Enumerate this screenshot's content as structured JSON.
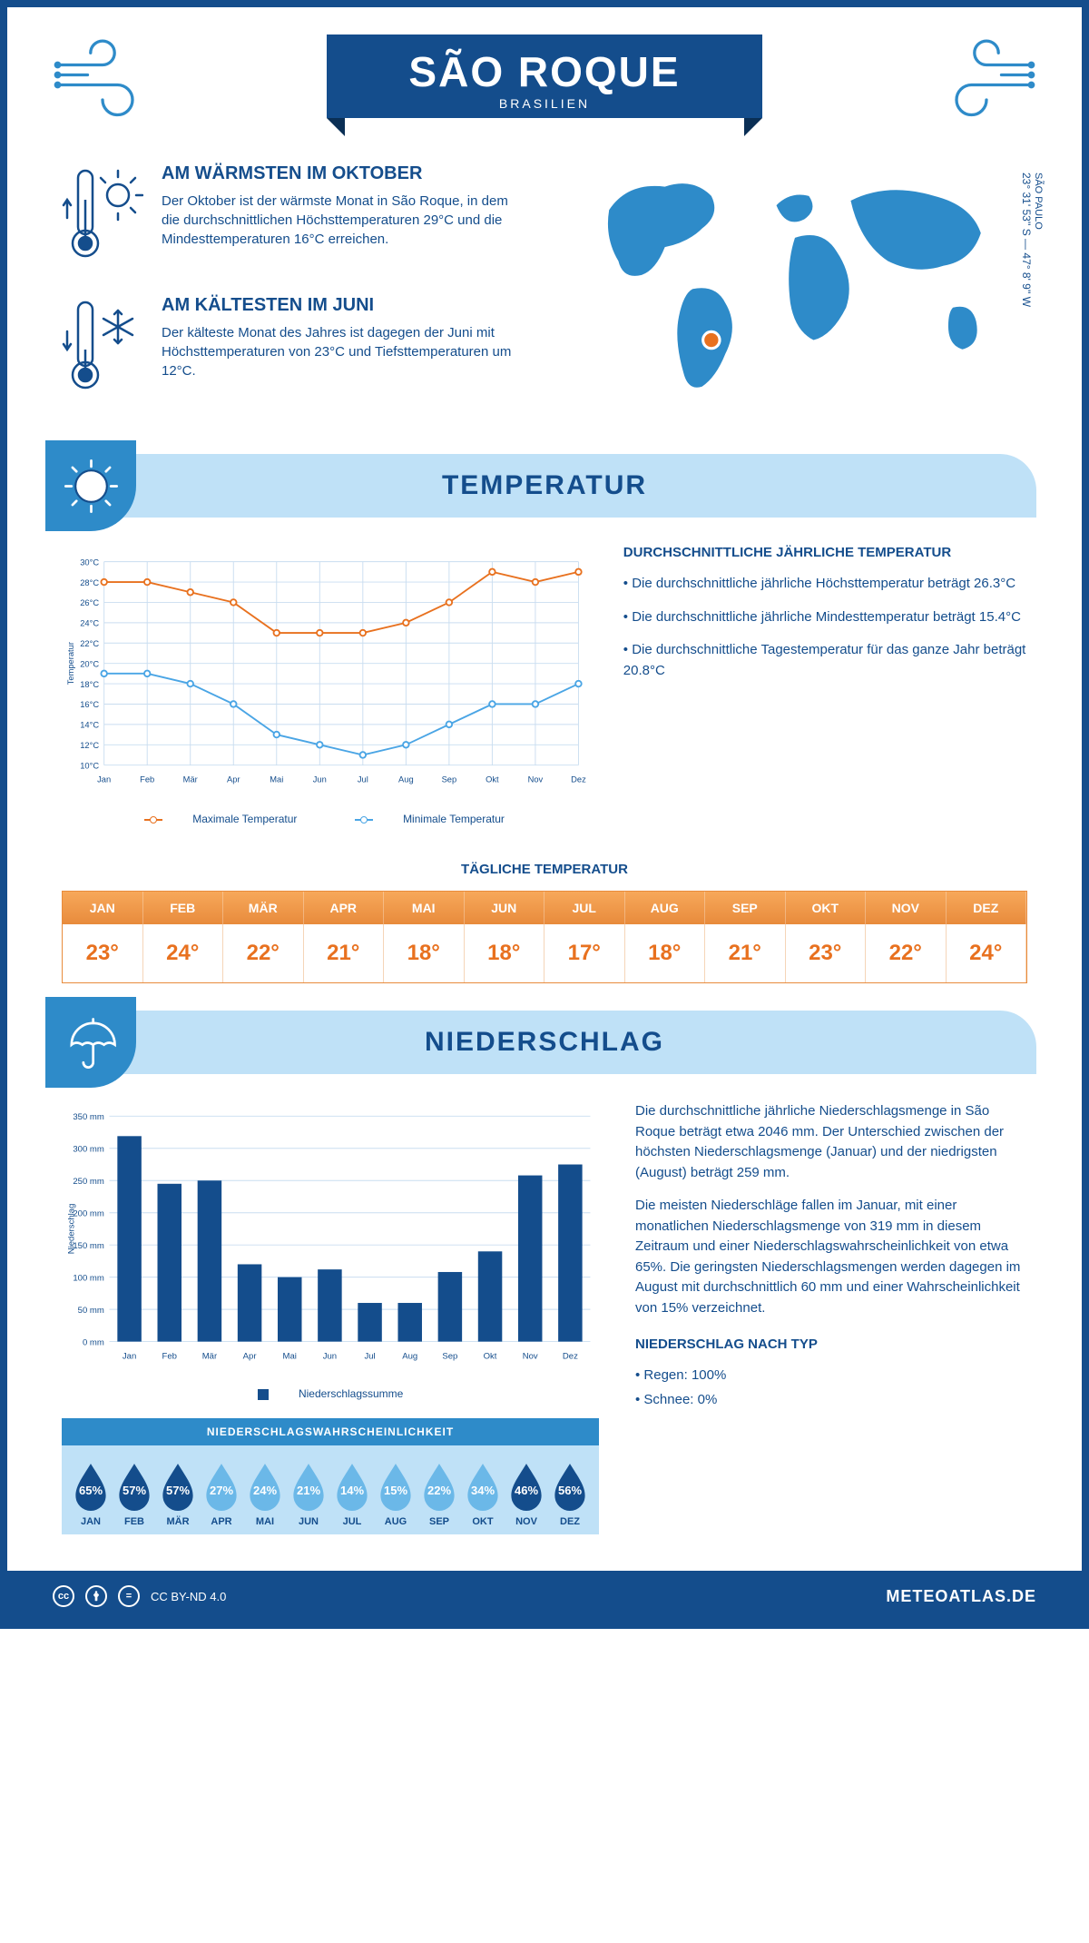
{
  "header": {
    "city": "SÃO ROQUE",
    "country": "BRASILIEN"
  },
  "coords": {
    "region": "SÃO PAULO",
    "value": "23° 31' 53'' S — 47° 8' 9'' W"
  },
  "facts": {
    "warm": {
      "title": "AM WÄRMSTEN IM OKTOBER",
      "text": "Der Oktober ist der wärmste Monat in São Roque, in dem die durchschnittlichen Höchsttemperaturen 29°C und die Mindesttemperaturen 16°C erreichen."
    },
    "cold": {
      "title": "AM KÄLTESTEN IM JUNI",
      "text": "Der kälteste Monat des Jahres ist dagegen der Juni mit Höchsttemperaturen von 23°C und Tiefsttemperaturen um 12°C."
    }
  },
  "sections": {
    "temperature": "TEMPERATUR",
    "precipitation": "NIEDERSCHLAG"
  },
  "months": [
    "Jan",
    "Feb",
    "Mär",
    "Apr",
    "Mai",
    "Jun",
    "Jul",
    "Aug",
    "Sep",
    "Okt",
    "Nov",
    "Dez"
  ],
  "months_upper": [
    "JAN",
    "FEB",
    "MÄR",
    "APR",
    "MAI",
    "JUN",
    "JUL",
    "AUG",
    "SEP",
    "OKT",
    "NOV",
    "DEZ"
  ],
  "temp_chart": {
    "ylabel": "Temperatur",
    "ymin": 10,
    "ymax": 30,
    "ystep": 2,
    "max_series": [
      28,
      28,
      27,
      26,
      23,
      23,
      23,
      24,
      26,
      29,
      28,
      29
    ],
    "min_series": [
      19,
      19,
      18,
      16,
      13,
      12,
      11,
      12,
      14,
      16,
      16,
      18
    ],
    "max_color": "#e8711f",
    "min_color": "#4aa5e5",
    "grid_color": "#c9ddf0",
    "legend_max": "Maximale Temperatur",
    "legend_min": "Minimale Temperatur"
  },
  "temp_desc": {
    "title": "DURCHSCHNITTLICHE JÄHRLICHE TEMPERATUR",
    "b1": "• Die durchschnittliche jährliche Höchsttemperatur beträgt 26.3°C",
    "b2": "• Die durchschnittliche jährliche Mindesttemperatur beträgt 15.4°C",
    "b3": "• Die durchschnittliche Tagestemperatur für das ganze Jahr beträgt 20.8°C"
  },
  "daily_temp": {
    "title": "TÄGLICHE TEMPERATUR",
    "values": [
      "23°",
      "24°",
      "22°",
      "21°",
      "18°",
      "18°",
      "17°",
      "18°",
      "21°",
      "23°",
      "22°",
      "24°"
    ]
  },
  "precip_chart": {
    "ylabel": "Niederschlag",
    "ymax": 350,
    "ystep": 50,
    "values": [
      319,
      245,
      250,
      120,
      100,
      112,
      60,
      60,
      108,
      140,
      258,
      275
    ],
    "bar_color": "#144d8c",
    "grid_color": "#c9ddf0",
    "legend": "Niederschlagssumme"
  },
  "precip_desc": {
    "p1": "Die durchschnittliche jährliche Niederschlagsmenge in São Roque beträgt etwa 2046 mm. Der Unterschied zwischen der höchsten Niederschlagsmenge (Januar) und der niedrigsten (August) beträgt 259 mm.",
    "p2": "Die meisten Niederschläge fallen im Januar, mit einer monatlichen Niederschlagsmenge von 319 mm in diesem Zeitraum und einer Niederschlagswahrscheinlichkeit von etwa 65%. Die geringsten Niederschlagsmengen werden dagegen im August mit durchschnittlich 60 mm und einer Wahrscheinlichkeit von 15% verzeichnet.",
    "type_title": "NIEDERSCHLAG NACH TYP",
    "rain": "• Regen: 100%",
    "snow": "• Schnee: 0%"
  },
  "drops": {
    "title": "NIEDERSCHLAGSWAHRSCHEINLICHKEIT",
    "values": [
      65,
      57,
      57,
      27,
      24,
      21,
      14,
      15,
      22,
      34,
      46,
      56
    ],
    "dark_color": "#144d8c",
    "light_color": "#6bb8e8"
  },
  "footer": {
    "license": "CC BY-ND 4.0",
    "site": "METEOATLAS.DE"
  }
}
